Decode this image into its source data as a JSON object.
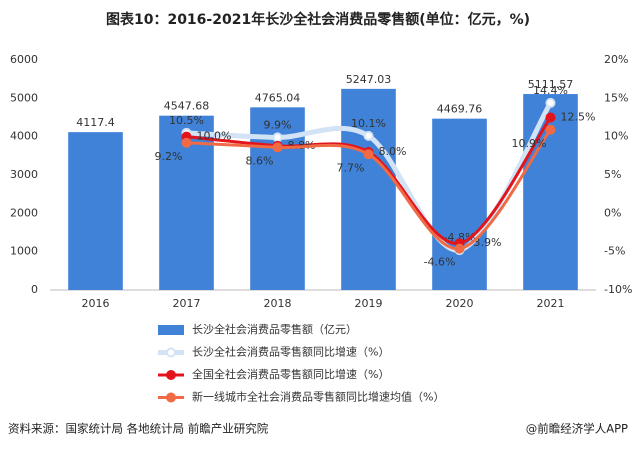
{
  "chart_data": {
    "type": "bar",
    "title": "图表10：2016-2021年长沙全社会消费品零售额(单位：亿元，%)",
    "categories": [
      "2016",
      "2017",
      "2018",
      "2019",
      "2020",
      "2021"
    ],
    "series": [
      {
        "name": "长沙全社会消费品零售额（亿元）",
        "type": "bar",
        "color": "#3f82d8",
        "values": [
          4117.4,
          4547.68,
          4765.04,
          5247.03,
          4469.76,
          5111.57
        ]
      },
      {
        "name": "长沙全社会消费品零售额同比增速（%）",
        "type": "line",
        "axis": "y2",
        "color": "#d3e3f6",
        "values": [
          null,
          10.5,
          9.9,
          10.1,
          -4.8,
          14.4
        ],
        "value_labels": [
          null,
          "10.5%",
          "9.9%",
          "10.1%",
          "-4.8%",
          "14.4%"
        ]
      },
      {
        "name": "全国全社会消费品零售额同比增速（%）",
        "type": "line",
        "axis": "y2",
        "color": "#e3141b",
        "values": [
          null,
          10.0,
          8.8,
          8.0,
          -3.9,
          12.5
        ],
        "value_labels": [
          null,
          "10.0%",
          "8.8%",
          "8.0%",
          "-3.9%",
          "12.5%"
        ]
      },
      {
        "name": "新一线城市全社会消费品零售额同比增速均值（%）",
        "type": "line",
        "axis": "y2",
        "color": "#f06a45",
        "values": [
          null,
          9.2,
          8.6,
          7.7,
          -4.6,
          10.9
        ],
        "value_labels": [
          null,
          "9.2%",
          "8.6%",
          "7.7%",
          "-4.6%",
          "10.9%"
        ]
      }
    ],
    "ylim": [
      0,
      6000
    ],
    "yticks": [
      0,
      1000,
      2000,
      3000,
      4000,
      5000,
      6000
    ],
    "y2lim": [
      -10,
      20
    ],
    "y2ticks": [
      {
        "value": -10,
        "label": "-10%"
      },
      {
        "value": -5,
        "label": "-5%"
      },
      {
        "value": 0,
        "label": "0%"
      },
      {
        "value": 5,
        "label": "5%"
      },
      {
        "value": 10,
        "label": "10%"
      },
      {
        "value": 15,
        "label": "15%"
      },
      {
        "value": 20,
        "label": "20%"
      }
    ],
    "grid": false,
    "source": "资料来源：国家统计局 各地统计局 前瞻产业研究院",
    "credit": "@前瞻经济学人APP"
  }
}
